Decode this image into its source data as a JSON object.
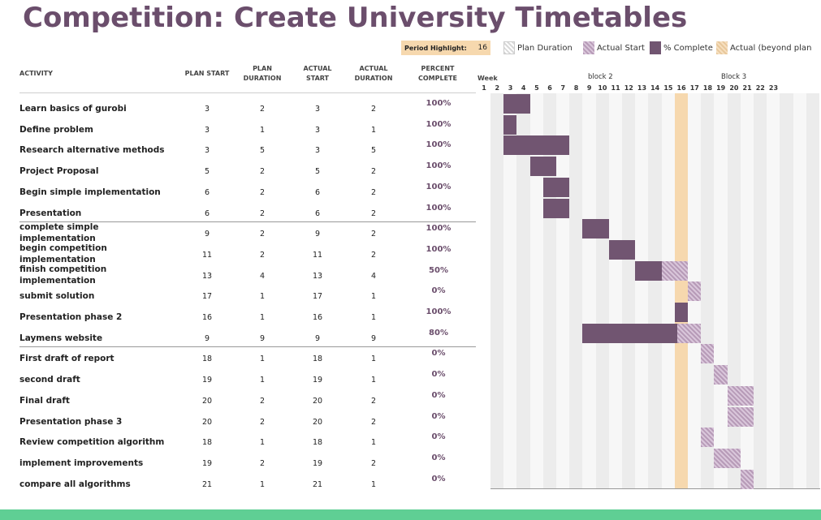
{
  "title": "Competition: Create University Timetables",
  "legend": {
    "period_label": "Period Highlight:",
    "period_value": "16",
    "plan_duration": "Plan Duration",
    "actual_start": "Actual Start",
    "percent_complete": "% Complete",
    "actual_beyond": "Actual (beyond plan"
  },
  "headers": {
    "activity": "ACTIVITY",
    "plan_start": "PLAN START",
    "plan_duration_1": "PLAN",
    "plan_duration_2": "DURATION",
    "actual_start_1": "ACTUAL",
    "actual_start_2": "START",
    "actual_duration_1": "ACTUAL",
    "actual_duration_2": "DURATION",
    "percent_1": "PERCENT",
    "percent_2": "COMPLETE",
    "week": "Week",
    "block2": "block 2",
    "block3": "Block 3"
  },
  "week_numbers": [
    "1",
    "2",
    "3",
    "4",
    "5",
    "6",
    "7",
    "8",
    "9",
    "10",
    "11",
    "12",
    "13",
    "14",
    "15",
    "16",
    "17",
    "18",
    "19",
    "20",
    "21",
    "22",
    "23"
  ],
  "highlight_week": 16,
  "colors": {
    "title": "#6b4e6c",
    "complete": "#715571",
    "highlight": "#f6d8ae",
    "footer": "#5fcf94"
  },
  "activities": [
    {
      "name_1": "Learn basics of gurobi",
      "name_2": "",
      "plan_start": "3",
      "plan_duration": "2",
      "actual_start": "3",
      "actual_duration": "2",
      "percent": "100%",
      "pct": 1.0
    },
    {
      "name_1": "Define problem",
      "name_2": "",
      "plan_start": "3",
      "plan_duration": "1",
      "actual_start": "3",
      "actual_duration": "1",
      "percent": "100%",
      "pct": 1.0
    },
    {
      "name_1": "Research alternative methods",
      "name_2": "",
      "plan_start": "3",
      "plan_duration": "5",
      "actual_start": "3",
      "actual_duration": "5",
      "percent": "100%",
      "pct": 1.0
    },
    {
      "name_1": "Project Proposal",
      "name_2": "",
      "plan_start": "5",
      "plan_duration": "2",
      "actual_start": "5",
      "actual_duration": "2",
      "percent": "100%",
      "pct": 1.0
    },
    {
      "name_1": "Begin simple implementation",
      "name_2": "",
      "plan_start": "6",
      "plan_duration": "2",
      "actual_start": "6",
      "actual_duration": "2",
      "percent": "100%",
      "pct": 1.0
    },
    {
      "name_1": "Presentation",
      "name_2": "",
      "plan_start": "6",
      "plan_duration": "2",
      "actual_start": "6",
      "actual_duration": "2",
      "percent": "100%",
      "pct": 1.0
    },
    {
      "name_1": "complete simple",
      "name_2": "implementation",
      "plan_start": "9",
      "plan_duration": "2",
      "actual_start": "9",
      "actual_duration": "2",
      "percent": "100%",
      "pct": 1.0
    },
    {
      "name_1": "begin competition",
      "name_2": "implementation",
      "plan_start": "11",
      "plan_duration": "2",
      "actual_start": "11",
      "actual_duration": "2",
      "percent": "100%",
      "pct": 1.0
    },
    {
      "name_1": "finish competition",
      "name_2": "implementation",
      "plan_start": "13",
      "plan_duration": "4",
      "actual_start": "13",
      "actual_duration": "4",
      "percent": "50%",
      "pct": 0.5
    },
    {
      "name_1": "submit solution",
      "name_2": "",
      "plan_start": "17",
      "plan_duration": "1",
      "actual_start": "17",
      "actual_duration": "1",
      "percent": "0%",
      "pct": 0.0
    },
    {
      "name_1": "Presentation phase 2",
      "name_2": "",
      "plan_start": "16",
      "plan_duration": "1",
      "actual_start": "16",
      "actual_duration": "1",
      "percent": "100%",
      "pct": 1.0
    },
    {
      "name_1": "Laymens website",
      "name_2": "",
      "plan_start": "9",
      "plan_duration": "9",
      "actual_start": "9",
      "actual_duration": "9",
      "percent": "80%",
      "pct": 0.8
    },
    {
      "name_1": "First draft of report",
      "name_2": "",
      "plan_start": "18",
      "plan_duration": "1",
      "actual_start": "18",
      "actual_duration": "1",
      "percent": "0%",
      "pct": 0.0
    },
    {
      "name_1": "second draft",
      "name_2": "",
      "plan_start": "19",
      "plan_duration": "1",
      "actual_start": "19",
      "actual_duration": "1",
      "percent": "0%",
      "pct": 0.0
    },
    {
      "name_1": "Final draft",
      "name_2": "",
      "plan_start": "20",
      "plan_duration": "2",
      "actual_start": "20",
      "actual_duration": "2",
      "percent": "0%",
      "pct": 0.0
    },
    {
      "name_1": "Presentation phase 3",
      "name_2": "",
      "plan_start": "20",
      "plan_duration": "2",
      "actual_start": "20",
      "actual_duration": "2",
      "percent": "0%",
      "pct": 0.0
    },
    {
      "name_1": "Review competition algorithm",
      "name_2": "",
      "plan_start": "18",
      "plan_duration": "1",
      "actual_start": "18",
      "actual_duration": "1",
      "percent": "0%",
      "pct": 0.0
    },
    {
      "name_1": "implement improvements",
      "name_2": "",
      "plan_start": "19",
      "plan_duration": "2",
      "actual_start": "19",
      "actual_duration": "2",
      "percent": "0%",
      "pct": 0.0
    },
    {
      "name_1": "compare all algorithms",
      "name_2": "",
      "plan_start": "21",
      "plan_duration": "1",
      "actual_start": "21",
      "actual_duration": "1",
      "percent": "0%",
      "pct": 0.0
    }
  ]
}
